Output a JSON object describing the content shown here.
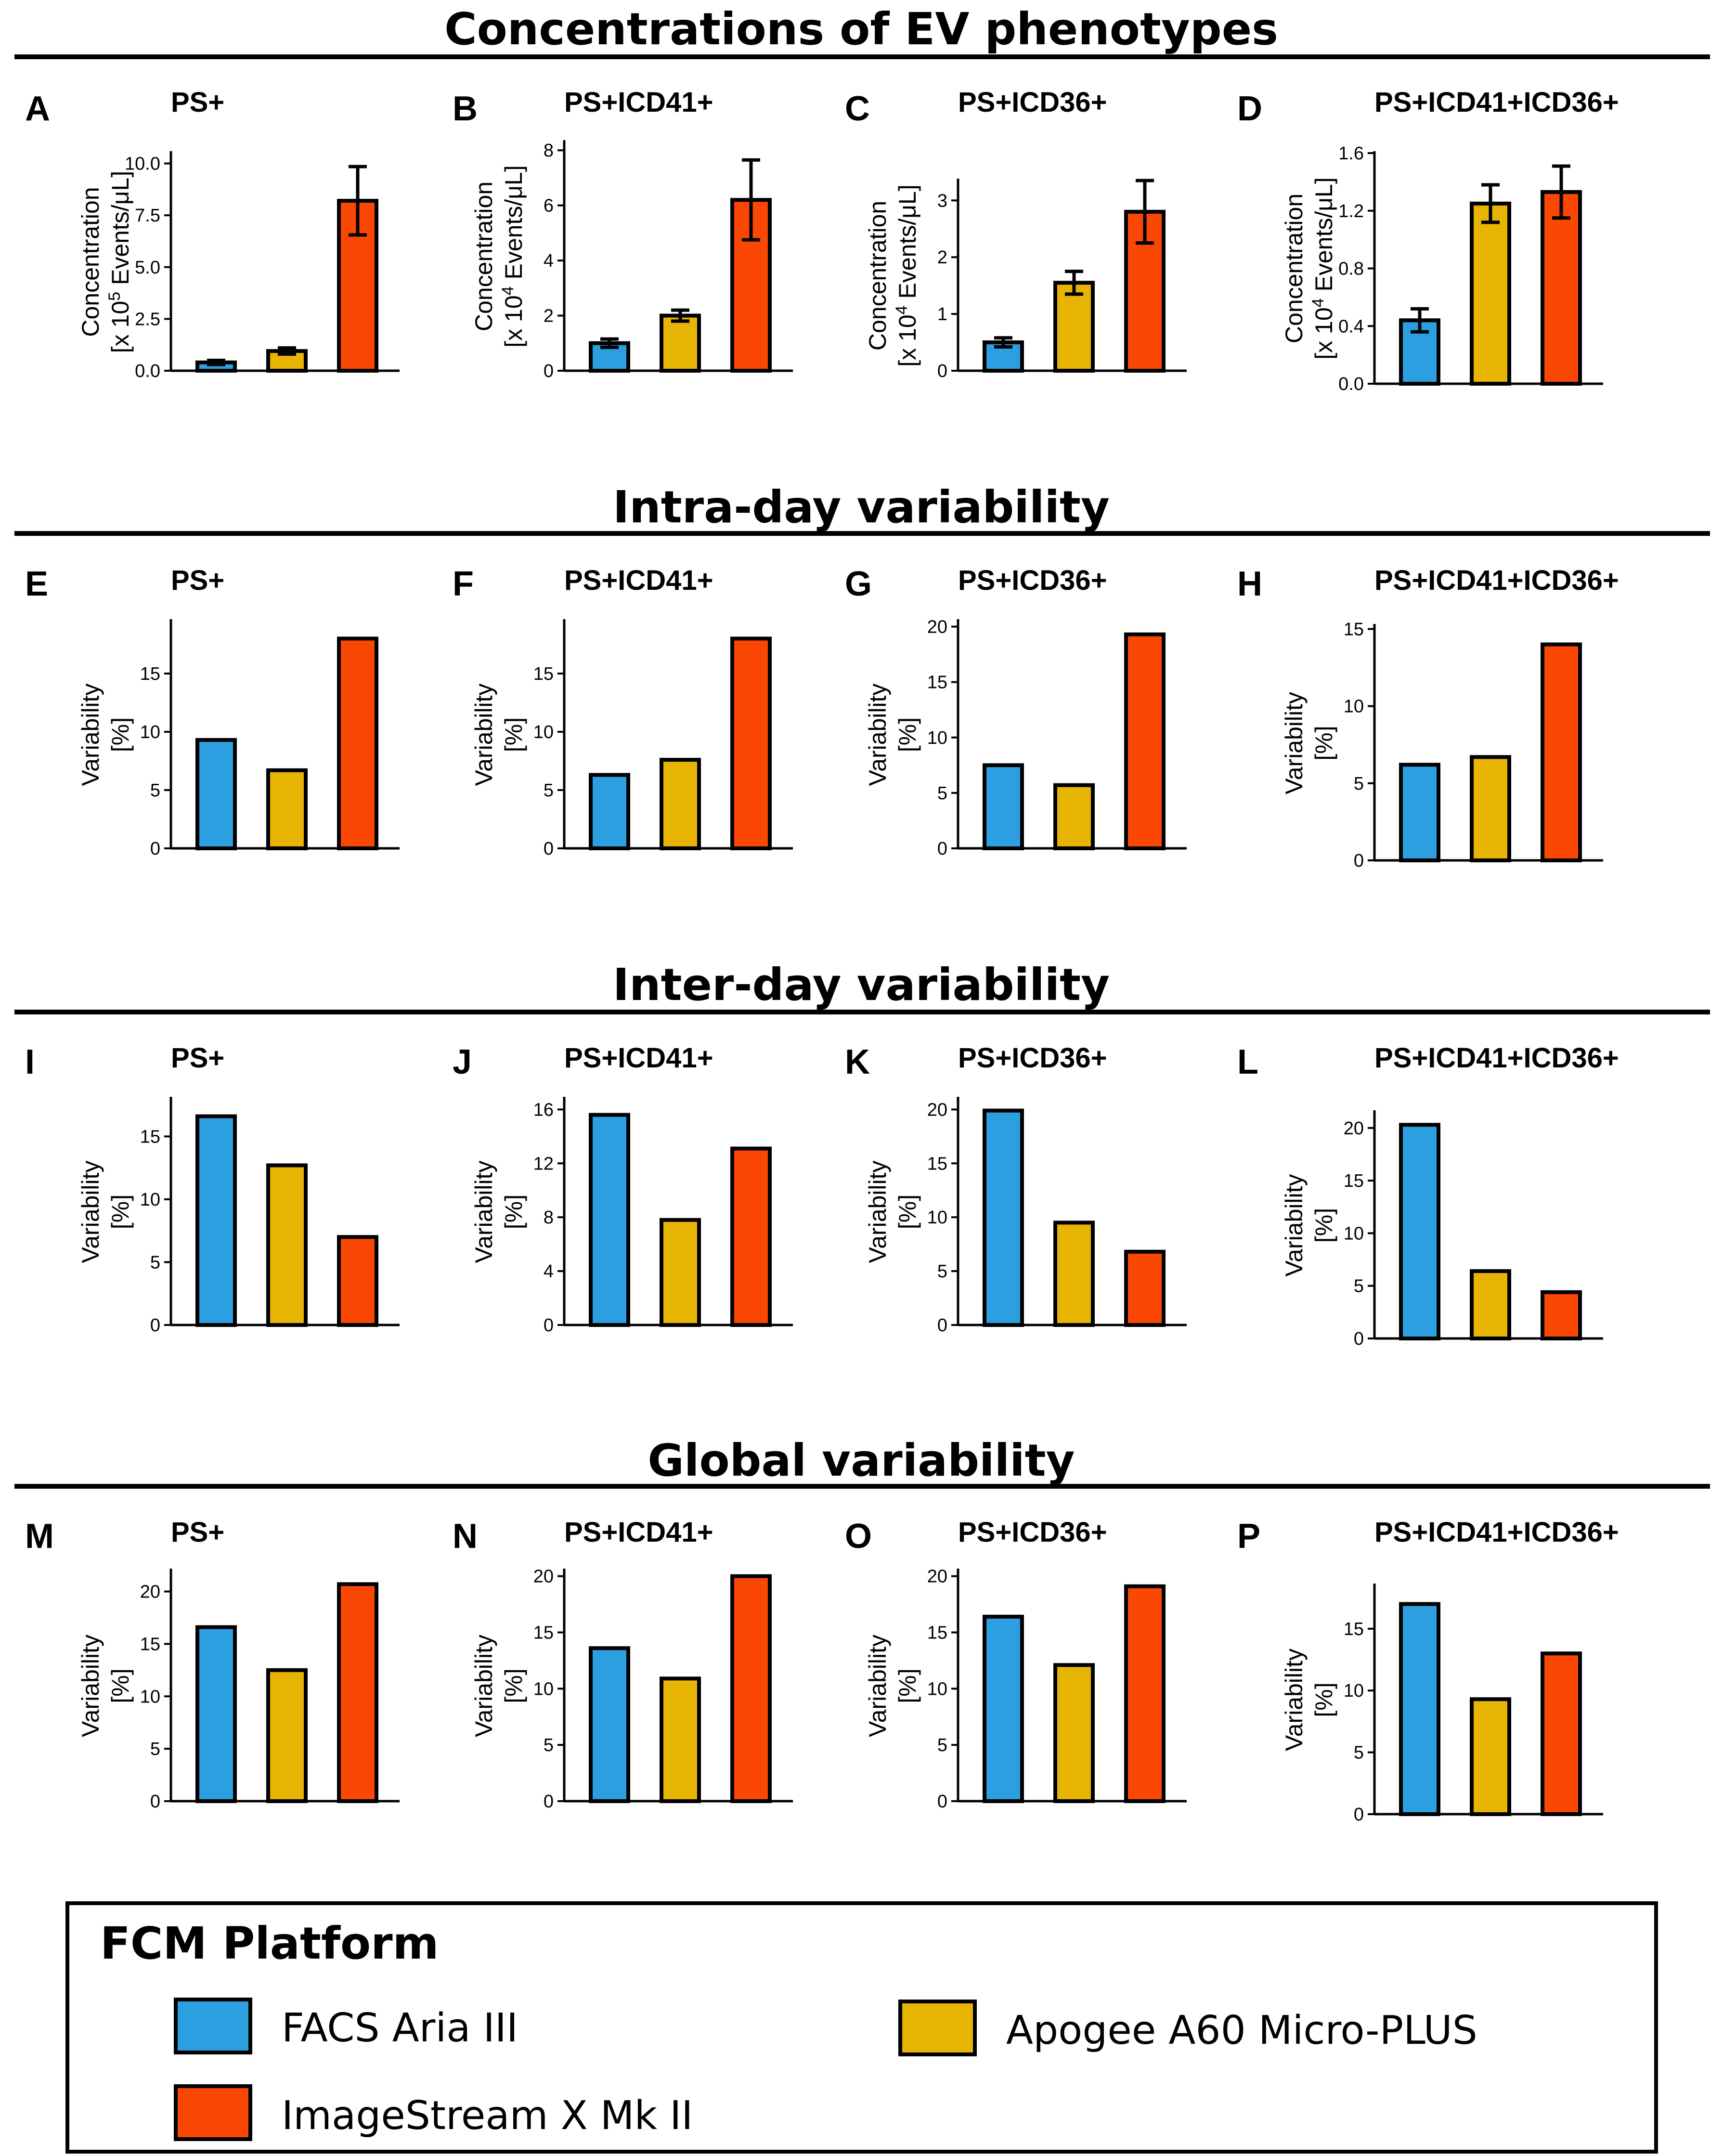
{
  "colors": {
    "FACS Aria III": "#2b9fe0",
    "Apogee A60 Micro-PLUS": "#e8b404",
    "ImageStream X Mk II": "#fb4704"
  },
  "section_titles": [
    "Concentrations of EV phenotypes",
    "Intra-day variability",
    "Inter-day variability",
    "Global variability"
  ],
  "legend": {
    "title": "FCM Platform",
    "items": [
      "FACS Aria III",
      "Apogee A60 Micro-PLUS",
      "ImageStream X Mk II"
    ]
  },
  "chart_data": [
    {
      "letter": "A",
      "type": "bar",
      "title": "PS+",
      "ylabel": [
        "Concentration",
        "[x 10^5 Events/μL]"
      ],
      "ylim": [
        0,
        10.5
      ],
      "ticks": [
        0.0,
        2.5,
        5.0,
        7.5,
        10.0
      ],
      "tick_labels": [
        "0.0",
        "2.5",
        "5.0",
        "7.5",
        "10.0"
      ],
      "categories": [
        "FACS Aria III",
        "Apogee A60 Micro-PLUS",
        "ImageStream X Mk II"
      ],
      "values": [
        0.4,
        0.95,
        8.2
      ],
      "errors": [
        0.1,
        0.15,
        1.65
      ]
    },
    {
      "letter": "B",
      "type": "bar",
      "title": "PS+ICD41+",
      "ylabel": [
        "Concentration",
        "[x 10^4 Events/μL]"
      ],
      "ylim": [
        0,
        8.3
      ],
      "ticks": [
        0,
        2,
        4,
        6,
        8
      ],
      "tick_labels": [
        "0",
        "2",
        "4",
        "6",
        "8"
      ],
      "categories": [
        "FACS Aria III",
        "Apogee A60 Micro-PLUS",
        "ImageStream X Mk II"
      ],
      "values": [
        1.0,
        2.0,
        6.2
      ],
      "errors": [
        0.15,
        0.2,
        1.45
      ]
    },
    {
      "letter": "C",
      "type": "bar",
      "title": "PS+ICD36+",
      "ylabel": [
        "Concentration",
        "[x 10^4 Events/μL]"
      ],
      "ylim": [
        0,
        3.35
      ],
      "ticks": [
        0,
        1,
        2,
        3
      ],
      "tick_labels": [
        "0",
        "1",
        "2",
        "3"
      ],
      "categories": [
        "FACS Aria III",
        "Apogee A60 Micro-PLUS",
        "ImageStream X Mk II"
      ],
      "values": [
        0.5,
        1.55,
        2.8
      ],
      "errors": [
        0.08,
        0.2,
        0.55
      ]
    },
    {
      "letter": "D",
      "type": "bar",
      "title": "PS+ICD41+ICD36+",
      "ylabel": [
        "Concentration",
        "[x 10^4 Events/μL]"
      ],
      "ylim": [
        0,
        1.6
      ],
      "ticks": [
        0.0,
        0.4,
        0.8,
        1.2,
        1.6
      ],
      "tick_labels": [
        "0.0",
        "0.4",
        "0.8",
        "1.2",
        "1.6"
      ],
      "categories": [
        "FACS Aria III",
        "Apogee A60 Micro-PLUS",
        "ImageStream X Mk II"
      ],
      "values": [
        0.44,
        1.25,
        1.33
      ],
      "errors": [
        0.08,
        0.13,
        0.18
      ]
    },
    {
      "letter": "E",
      "type": "bar",
      "title": "PS+",
      "ylabel": [
        "Variability",
        "[%]"
      ],
      "ylim": [
        0,
        19.5
      ],
      "ticks": [
        0,
        5,
        10,
        15
      ],
      "tick_labels": [
        "0",
        "5",
        "10",
        "15"
      ],
      "categories": [
        "FACS Aria III",
        "Apogee A60 Micro-PLUS",
        "ImageStream X Mk II"
      ],
      "values": [
        9.3,
        6.7,
        18.0
      ]
    },
    {
      "letter": "F",
      "type": "bar",
      "title": "PS+ICD41+",
      "ylabel": [
        "Variability",
        "[%]"
      ],
      "ylim": [
        0,
        19.5
      ],
      "ticks": [
        0,
        5,
        10,
        15
      ],
      "tick_labels": [
        "0",
        "5",
        "10",
        "15"
      ],
      "categories": [
        "FACS Aria III",
        "Apogee A60 Micro-PLUS",
        "ImageStream X Mk II"
      ],
      "values": [
        6.3,
        7.6,
        18.0
      ]
    },
    {
      "letter": "G",
      "type": "bar",
      "title": "PS+ICD36+",
      "ylabel": [
        "Variability",
        "[%]"
      ],
      "ylim": [
        0,
        20.5
      ],
      "ticks": [
        0,
        5,
        10,
        15,
        20
      ],
      "tick_labels": [
        "0",
        "5",
        "10",
        "15",
        "20"
      ],
      "categories": [
        "FACS Aria III",
        "Apogee A60 Micro-PLUS",
        "ImageStream X Mk II"
      ],
      "values": [
        7.5,
        5.7,
        19.3
      ]
    },
    {
      "letter": "H",
      "type": "bar",
      "title": "PS+ICD41+ICD36+",
      "ylabel": [
        "Variability",
        "[%]"
      ],
      "ylim": [
        0,
        15.2
      ],
      "ticks": [
        0,
        5,
        10,
        15
      ],
      "tick_labels": [
        "0",
        "5",
        "10",
        "15"
      ],
      "categories": [
        "FACS Aria III",
        "Apogee A60 Micro-PLUS",
        "ImageStream X Mk II"
      ],
      "values": [
        6.2,
        6.7,
        14.0
      ]
    },
    {
      "letter": "I",
      "type": "bar",
      "title": "PS+",
      "ylabel": [
        "Variability",
        "[%]"
      ],
      "ylim": [
        0,
        18.0
      ],
      "ticks": [
        0,
        5,
        10,
        15
      ],
      "tick_labels": [
        "0",
        "5",
        "10",
        "15"
      ],
      "categories": [
        "FACS Aria III",
        "Apogee A60 Micro-PLUS",
        "ImageStream X Mk II"
      ],
      "values": [
        16.6,
        12.7,
        7.0
      ]
    },
    {
      "letter": "J",
      "type": "bar",
      "title": "PS+ICD41+",
      "ylabel": [
        "Variability",
        "[%]"
      ],
      "ylim": [
        0,
        16.8
      ],
      "ticks": [
        0,
        4,
        8,
        12,
        16
      ],
      "tick_labels": [
        "0",
        "4",
        "8",
        "12",
        "16"
      ],
      "categories": [
        "FACS Aria III",
        "Apogee A60 Micro-PLUS",
        "ImageStream X Mk II"
      ],
      "values": [
        15.6,
        7.8,
        13.1
      ]
    },
    {
      "letter": "K",
      "type": "bar",
      "title": "PS+ICD36+",
      "ylabel": [
        "Variability",
        "[%]"
      ],
      "ylim": [
        0,
        21.0
      ],
      "ticks": [
        0,
        5,
        10,
        15,
        20
      ],
      "tick_labels": [
        "0",
        "5",
        "10",
        "15",
        "20"
      ],
      "categories": [
        "FACS Aria III",
        "Apogee A60 Micro-PLUS",
        "ImageStream X Mk II"
      ],
      "values": [
        19.9,
        9.5,
        6.8
      ]
    },
    {
      "letter": "L",
      "type": "bar",
      "title": "PS+ICD41+ICD36+",
      "ylabel": [
        "Variability",
        "[%]"
      ],
      "ylim": [
        0,
        21.5
      ],
      "ticks": [
        0,
        5,
        10,
        15,
        20
      ],
      "tick_labels": [
        "0",
        "5",
        "10",
        "15",
        "20"
      ],
      "categories": [
        "FACS Aria III",
        "Apogee A60 Micro-PLUS",
        "ImageStream X Mk II"
      ],
      "values": [
        20.3,
        6.4,
        4.4
      ]
    },
    {
      "letter": "M",
      "type": "bar",
      "title": "PS+",
      "ylabel": [
        "Variability",
        "[%]"
      ],
      "ylim": [
        0,
        22.0
      ],
      "ticks": [
        0,
        5,
        10,
        15,
        20
      ],
      "tick_labels": [
        "0",
        "5",
        "10",
        "15",
        "20"
      ],
      "categories": [
        "FACS Aria III",
        "Apogee A60 Micro-PLUS",
        "ImageStream X Mk II"
      ],
      "values": [
        16.6,
        12.5,
        20.7
      ]
    },
    {
      "letter": "N",
      "type": "bar",
      "title": "PS+ICD41+",
      "ylabel": [
        "Variability",
        "[%]"
      ],
      "ylim": [
        0,
        20.5
      ],
      "ticks": [
        0,
        5,
        10,
        15,
        20
      ],
      "tick_labels": [
        "0",
        "5",
        "10",
        "15",
        "20"
      ],
      "categories": [
        "FACS Aria III",
        "Apogee A60 Micro-PLUS",
        "ImageStream X Mk II"
      ],
      "values": [
        13.6,
        10.9,
        20.0
      ]
    },
    {
      "letter": "O",
      "type": "bar",
      "title": "PS+ICD36+",
      "ylabel": [
        "Variability",
        "[%]"
      ],
      "ylim": [
        0,
        20.5
      ],
      "ticks": [
        0,
        5,
        10,
        15,
        20
      ],
      "tick_labels": [
        "0",
        "5",
        "10",
        "15",
        "20"
      ],
      "categories": [
        "FACS Aria III",
        "Apogee A60 Micro-PLUS",
        "ImageStream X Mk II"
      ],
      "values": [
        16.4,
        12.1,
        19.1
      ]
    },
    {
      "letter": "P",
      "type": "bar",
      "title": "PS+ICD41+ICD36+",
      "ylabel": [
        "Variability",
        "[%]"
      ],
      "ylim": [
        0,
        18.5
      ],
      "ticks": [
        0,
        5,
        10,
        15
      ],
      "tick_labels": [
        "0",
        "5",
        "10",
        "15"
      ],
      "categories": [
        "FACS Aria III",
        "Apogee A60 Micro-PLUS",
        "ImageStream X Mk II"
      ],
      "values": [
        17.0,
        9.3,
        13.0
      ]
    }
  ]
}
